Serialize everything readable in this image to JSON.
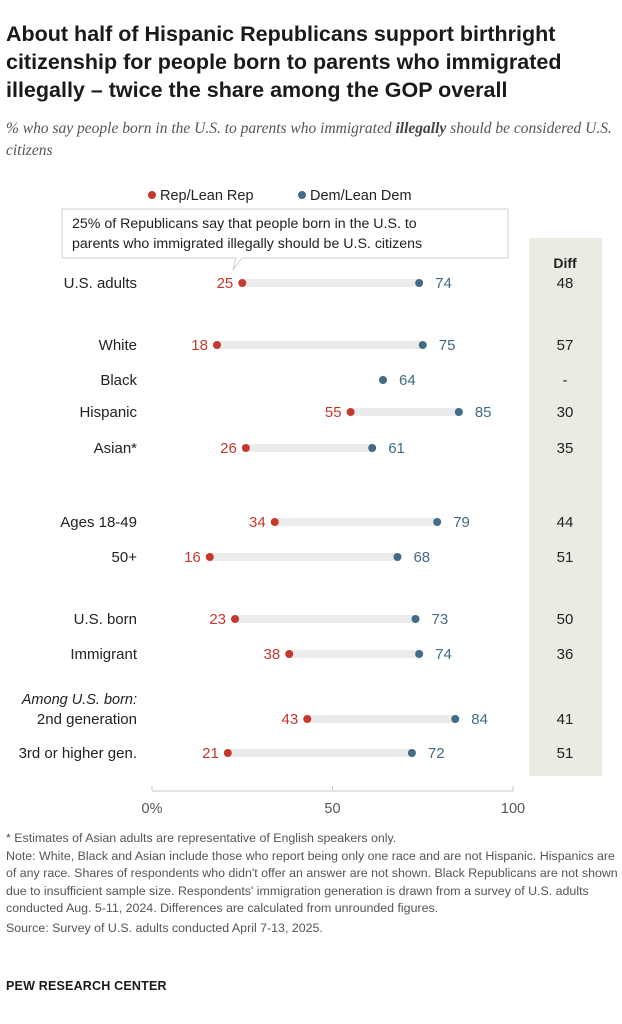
{
  "title": "About half of Hispanic Republicans support birthright citizenship for people born to parents who immigrated illegally – twice the share among the GOP overall",
  "subtitle_pre": "% who say people born in the U.S. to parents who immigrated ",
  "subtitle_bold": "illegally",
  "subtitle_post": " should be considered U.S. citizens",
  "colors": {
    "rep": "#c8372d",
    "dem": "#416b86",
    "bar": "#ebebeb",
    "diff_bg": "#ecebe3",
    "text": "#222222"
  },
  "chart_data": {
    "type": "dot",
    "series": [
      {
        "name": "Rep/Lean Rep",
        "color": "#c8372d"
      },
      {
        "name": "Dem/Lean Dem",
        "color": "#416b86"
      }
    ],
    "xlim": [
      0,
      100
    ],
    "x_ticks": [
      "0%",
      "50",
      "100"
    ],
    "tick_values": [
      0,
      50,
      100
    ],
    "diff_header": "Diff",
    "annotation": "25% of Republicans say that people born in the U.S. to parents who immigrated illegally should be U.S. citizens",
    "annotation_lines": [
      "25% of Republicans say that people born in the U.S. to",
      "parents who immigrated illegally should be U.S. citizens"
    ],
    "group_label": "Among U.S. born:",
    "rows": [
      {
        "label": "U.S. adults",
        "rep": 25,
        "dem": 74,
        "diff": "48"
      },
      {
        "label": "White",
        "rep": 18,
        "dem": 75,
        "diff": "57"
      },
      {
        "label": "Black",
        "rep": null,
        "dem": 64,
        "diff": "-"
      },
      {
        "label": "Hispanic",
        "rep": 55,
        "dem": 85,
        "diff": "30"
      },
      {
        "label": "Asian*",
        "rep": 26,
        "dem": 61,
        "diff": "35"
      },
      {
        "label": "Ages 18-49",
        "rep": 34,
        "dem": 79,
        "diff": "44"
      },
      {
        "label": "50+",
        "rep": 16,
        "dem": 68,
        "diff": "51"
      },
      {
        "label": "U.S. born",
        "rep": 23,
        "dem": 73,
        "diff": "50"
      },
      {
        "label": "Immigrant",
        "rep": 38,
        "dem": 74,
        "diff": "36"
      },
      {
        "label": "2nd generation",
        "rep": 43,
        "dem": 84,
        "diff": "41"
      },
      {
        "label": "3rd or higher gen.",
        "rep": 21,
        "dem": 72,
        "diff": "51"
      }
    ]
  },
  "notes": {
    "asterisk": "* Estimates of Asian adults are representative of English speakers only.",
    "note": "Note: White, Black and Asian include those who report being only one race and are not Hispanic. Hispanics are of any race. Shares of respondents who didn't offer an answer are not shown. Black Republicans are not shown due to insufficient sample size. Respondents' immigration generation is drawn from a survey of U.S. adults conducted Aug. 5-11, 2024. Differences are calculated from unrounded figures.",
    "source": "Source: Survey of U.S. adults conducted April 7-13, 2025."
  },
  "brand": "PEW RESEARCH CENTER"
}
